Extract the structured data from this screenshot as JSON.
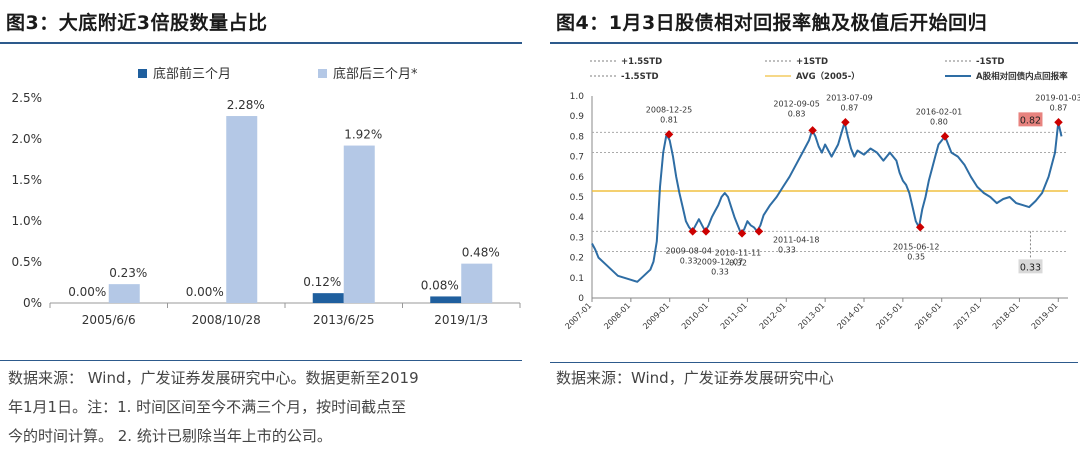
{
  "left": {
    "title": "图3：大底附近3倍股数量占比",
    "source_lines": [
      "数据来源： Wind，广发证券发展研究中心。数据更新至2019",
      "年1月1日。注：1. 时间区间至今不满三个月，按时间截点至",
      "今的时间计算。 2. 统计已剔除当年上市的公司。"
    ]
  },
  "right": {
    "title": "图4：1月3日股债相对回报率触及极值后开始回归",
    "source": "数据来源：Wind，广发证券发展研究中心"
  },
  "colors": {
    "before": "#1f5f9e",
    "after": "#b4c8e6",
    "line": "#2e6da4",
    "avg": "#f0c040",
    "marker": "#cc0000",
    "label_hi": "#e8837f",
    "label_lo": "#d9d9d9"
  },
  "chart_data": [
    {
      "type": "bar",
      "categories": [
        "2005/6/6",
        "2008/10/28",
        "2013/6/25",
        "2019/1/3"
      ],
      "series": [
        {
          "name": "底部前三个月",
          "values": [
            0.0,
            0.0,
            0.12,
            0.08
          ],
          "labels": [
            "0.00%",
            "0.00%",
            "0.12%",
            "0.08%"
          ]
        },
        {
          "name": "底部后三个月*",
          "values": [
            0.23,
            2.28,
            1.92,
            0.48
          ],
          "labels": [
            "0.23%",
            "2.28%",
            "1.92%",
            "0.48%"
          ]
        }
      ],
      "ylim": [
        0,
        2.5
      ],
      "yticks": [
        "0%",
        "0.5%",
        "1.0%",
        "1.5%",
        "2.0%",
        "2.5%"
      ],
      "grid": false,
      "legend": "top"
    },
    {
      "type": "line",
      "x_tick_labels": [
        "2007-01",
        "2008-01",
        "2009-01",
        "2010-01",
        "2011-01",
        "2012-01",
        "2013-01",
        "2014-01",
        "2015-01",
        "2016-01",
        "2017-01",
        "2018-01",
        "2019-01"
      ],
      "ylim": [
        0,
        1.0
      ],
      "yticks": [
        "0",
        "0.1",
        "0.2",
        "0.3",
        "0.4",
        "0.5",
        "0.6",
        "0.7",
        "0.8",
        "0.9",
        "1.0"
      ],
      "legend": [
        "+1.5STD",
        "+1STD",
        "-1STD",
        "-1.5STD",
        "AVG（2005-）",
        "A股相对回债内点回报率"
      ],
      "reference_lines": {
        "plus_1_5std": 0.82,
        "plus_1std": 0.72,
        "avg": 0.53,
        "minus_1std": 0.33,
        "minus_1_5std": 0.23
      },
      "series": [
        {
          "name": "A股相对回债内点回报率",
          "points": [
            [
              "2007-01",
              0.27
            ],
            [
              "2007-02",
              0.24
            ],
            [
              "2007-03",
              0.2
            ],
            [
              "2007-05",
              0.17
            ],
            [
              "2007-07",
              0.14
            ],
            [
              "2007-09",
              0.11
            ],
            [
              "2007-11",
              0.1
            ],
            [
              "2008-01",
              0.09
            ],
            [
              "2008-03",
              0.08
            ],
            [
              "2008-05",
              0.11
            ],
            [
              "2008-07",
              0.14
            ],
            [
              "2008-08",
              0.18
            ],
            [
              "2008-09",
              0.28
            ],
            [
              "2008-10",
              0.55
            ],
            [
              "2008-11",
              0.72
            ],
            [
              "2008-12",
              0.81
            ],
            [
              "2009-01",
              0.78
            ],
            [
              "2009-02",
              0.7
            ],
            [
              "2009-03",
              0.6
            ],
            [
              "2009-04",
              0.52
            ],
            [
              "2009-05",
              0.45
            ],
            [
              "2009-06",
              0.38
            ],
            [
              "2009-07",
              0.35
            ],
            [
              "2009-08",
              0.33
            ],
            [
              "2009-09",
              0.36
            ],
            [
              "2009-10",
              0.39
            ],
            [
              "2009-11",
              0.36
            ],
            [
              "2009-12",
              0.33
            ],
            [
              "2010-01",
              0.36
            ],
            [
              "2010-02",
              0.4
            ],
            [
              "2010-03",
              0.43
            ],
            [
              "2010-04",
              0.46
            ],
            [
              "2010-05",
              0.5
            ],
            [
              "2010-06",
              0.52
            ],
            [
              "2010-07",
              0.5
            ],
            [
              "2010-08",
              0.45
            ],
            [
              "2010-09",
              0.4
            ],
            [
              "2010-10",
              0.36
            ],
            [
              "2010-11",
              0.32
            ],
            [
              "2010-12",
              0.34
            ],
            [
              "2011-01",
              0.38
            ],
            [
              "2011-02",
              0.36
            ],
            [
              "2011-03",
              0.35
            ],
            [
              "2011-04",
              0.33
            ],
            [
              "2011-05",
              0.36
            ],
            [
              "2011-06",
              0.41
            ],
            [
              "2011-08",
              0.46
            ],
            [
              "2011-10",
              0.5
            ],
            [
              "2011-12",
              0.55
            ],
            [
              "2012-02",
              0.6
            ],
            [
              "2012-04",
              0.66
            ],
            [
              "2012-06",
              0.72
            ],
            [
              "2012-08",
              0.78
            ],
            [
              "2012-09",
              0.83
            ],
            [
              "2012-10",
              0.8
            ],
            [
              "2012-11",
              0.75
            ],
            [
              "2012-12",
              0.72
            ],
            [
              "2013-01",
              0.76
            ],
            [
              "2013-03",
              0.7
            ],
            [
              "2013-05",
              0.76
            ],
            [
              "2013-07",
              0.87
            ],
            [
              "2013-08",
              0.8
            ],
            [
              "2013-09",
              0.74
            ],
            [
              "2013-10",
              0.7
            ],
            [
              "2013-11",
              0.73
            ],
            [
              "2013-12",
              0.72
            ],
            [
              "2014-01",
              0.71
            ],
            [
              "2014-03",
              0.74
            ],
            [
              "2014-05",
              0.72
            ],
            [
              "2014-07",
              0.68
            ],
            [
              "2014-09",
              0.72
            ],
            [
              "2014-11",
              0.68
            ],
            [
              "2014-12",
              0.62
            ],
            [
              "2015-01",
              0.58
            ],
            [
              "2015-02",
              0.56
            ],
            [
              "2015-03",
              0.52
            ],
            [
              "2015-04",
              0.45
            ],
            [
              "2015-05",
              0.38
            ],
            [
              "2015-06",
              0.35
            ],
            [
              "2015-07",
              0.44
            ],
            [
              "2015-08",
              0.5
            ],
            [
              "2015-09",
              0.58
            ],
            [
              "2015-10",
              0.64
            ],
            [
              "2015-11",
              0.7
            ],
            [
              "2015-12",
              0.76
            ],
            [
              "2016-02",
              0.8
            ],
            [
              "2016-03",
              0.76
            ],
            [
              "2016-04",
              0.72
            ],
            [
              "2016-06",
              0.7
            ],
            [
              "2016-08",
              0.66
            ],
            [
              "2016-10",
              0.6
            ],
            [
              "2016-12",
              0.55
            ],
            [
              "2017-02",
              0.52
            ],
            [
              "2017-04",
              0.5
            ],
            [
              "2017-06",
              0.47
            ],
            [
              "2017-08",
              0.49
            ],
            [
              "2017-10",
              0.5
            ],
            [
              "2017-12",
              0.47
            ],
            [
              "2018-02",
              0.46
            ],
            [
              "2018-04",
              0.45
            ],
            [
              "2018-06",
              0.48
            ],
            [
              "2018-08",
              0.52
            ],
            [
              "2018-10",
              0.6
            ],
            [
              "2018-12",
              0.72
            ],
            [
              "2019-01",
              0.87
            ],
            [
              "2019-02",
              0.8
            ]
          ]
        }
      ],
      "annotations": [
        {
          "date": "2008-12-25",
          "value": "0.81"
        },
        {
          "date": "2009-08-04",
          "value": "0.33"
        },
        {
          "date": "2009-12-07",
          "value": "0.33"
        },
        {
          "date": "2010-11-11",
          "value": "0.32"
        },
        {
          "date": "2011-04-18",
          "value": "0.33"
        },
        {
          "date": "2012-09-05",
          "value": "0.83"
        },
        {
          "date": "2013-07-09",
          "value": "0.87"
        },
        {
          "date": "2015-06-12",
          "value": "0.35"
        },
        {
          "date": "2016-02-01",
          "value": "0.80"
        },
        {
          "date": "2019-01-03",
          "value": "0.87"
        }
      ],
      "boxed_labels": [
        "0.82",
        "0.33"
      ]
    }
  ]
}
